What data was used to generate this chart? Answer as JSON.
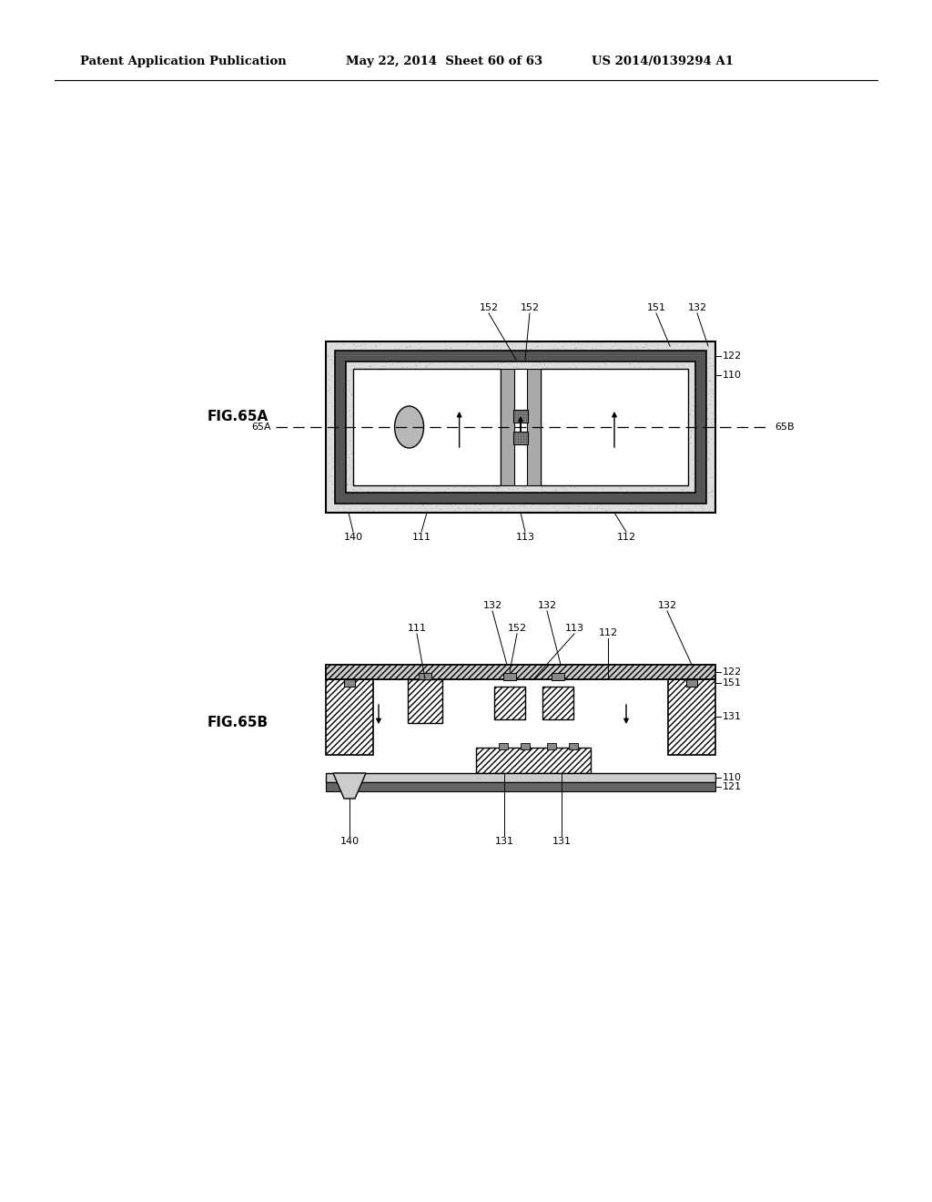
{
  "header_left": "Patent Application Publication",
  "header_mid": "May 22, 2014  Sheet 60 of 63",
  "header_right": "US 2014/0139294 A1",
  "fig65a_label": "FIG.65A",
  "fig65b_label": "FIG.65B",
  "bg_color": "#ffffff",
  "line_color": "#000000",
  "stipple_color": "#bbbbbb",
  "dark_gray": "#666666",
  "medium_gray": "#999999",
  "light_fill": "#e8e8e8",
  "hatch_gray": "#aaaaaa"
}
